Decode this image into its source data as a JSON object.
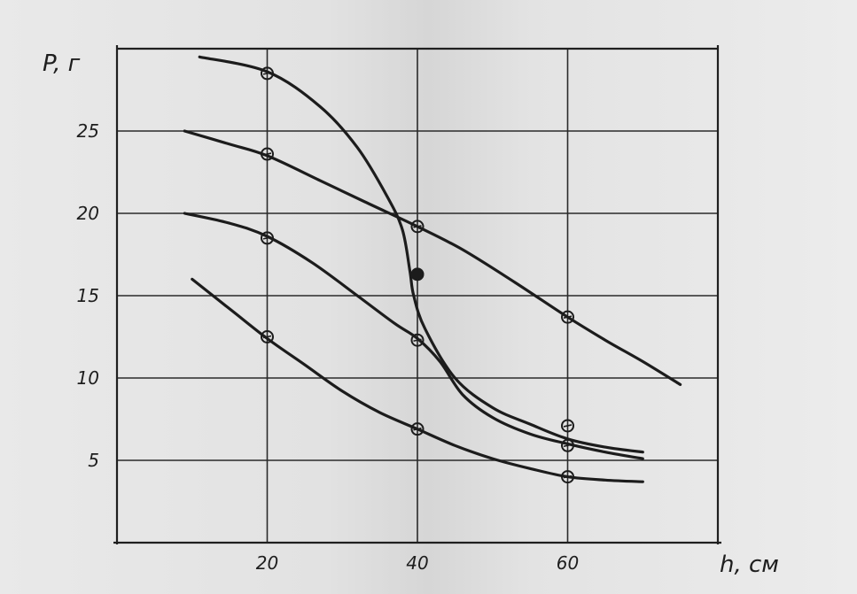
{
  "chart_data": {
    "type": "line",
    "title": "",
    "xlabel": "h, см",
    "ylabel": "P, г",
    "x_ticks": [
      20,
      40,
      60
    ],
    "y_ticks": [
      5,
      10,
      15,
      20,
      25
    ],
    "xlim": [
      0,
      80
    ],
    "ylim": [
      0,
      30
    ],
    "grid": true,
    "series": [
      {
        "curve": [
          [
            11,
            29.5
          ],
          [
            20,
            28.6
          ],
          [
            27,
            26.5
          ],
          [
            32,
            24
          ],
          [
            36,
            21
          ],
          [
            38,
            19
          ],
          [
            39,
            16.5
          ],
          [
            39.5,
            15
          ],
          [
            41,
            13
          ],
          [
            45,
            10
          ],
          [
            50,
            8.2
          ],
          [
            55,
            7.2
          ],
          [
            60,
            6.3
          ],
          [
            65,
            5.8
          ],
          [
            70,
            5.5
          ]
        ],
        "markers": [
          [
            20,
            28.5
          ],
          [
            40,
            16.3
          ],
          [
            60,
            7.1
          ]
        ],
        "filled": [
          false,
          true,
          false
        ]
      },
      {
        "curve": [
          [
            9,
            25
          ],
          [
            15,
            24.2
          ],
          [
            20,
            23.5
          ],
          [
            27,
            22
          ],
          [
            33,
            20.7
          ],
          [
            40,
            19.2
          ],
          [
            46,
            17.8
          ],
          [
            53,
            15.8
          ],
          [
            60,
            13.7
          ],
          [
            65,
            12.3
          ],
          [
            70,
            11
          ],
          [
            75,
            9.6
          ]
        ],
        "markers": [
          [
            20,
            23.6
          ],
          [
            40,
            19.2
          ],
          [
            60,
            13.7
          ]
        ],
        "filled": [
          false,
          false,
          false
        ]
      },
      {
        "curve": [
          [
            9,
            20
          ],
          [
            15,
            19.4
          ],
          [
            20,
            18.6
          ],
          [
            26,
            17
          ],
          [
            32,
            15
          ],
          [
            37,
            13.3
          ],
          [
            40,
            12.4
          ],
          [
            43,
            11
          ],
          [
            46,
            9
          ],
          [
            50,
            7.6
          ],
          [
            55,
            6.6
          ],
          [
            60,
            6
          ],
          [
            65,
            5.5
          ],
          [
            70,
            5.1
          ]
        ],
        "markers": [
          [
            20,
            18.5
          ],
          [
            40,
            12.3
          ],
          [
            60,
            5.9
          ]
        ],
        "filled": [
          false,
          false,
          false
        ]
      },
      {
        "curve": [
          [
            10,
            16
          ],
          [
            15,
            14.2
          ],
          [
            20,
            12.4
          ],
          [
            25,
            10.8
          ],
          [
            30,
            9.2
          ],
          [
            35,
            7.9
          ],
          [
            40,
            6.9
          ],
          [
            45,
            5.9
          ],
          [
            50,
            5.1
          ],
          [
            55,
            4.5
          ],
          [
            60,
            4
          ],
          [
            65,
            3.8
          ],
          [
            70,
            3.7
          ]
        ],
        "markers": [
          [
            20,
            12.5
          ],
          [
            40,
            6.9
          ],
          [
            60,
            4
          ]
        ],
        "filled": [
          false,
          false,
          false
        ]
      }
    ]
  }
}
